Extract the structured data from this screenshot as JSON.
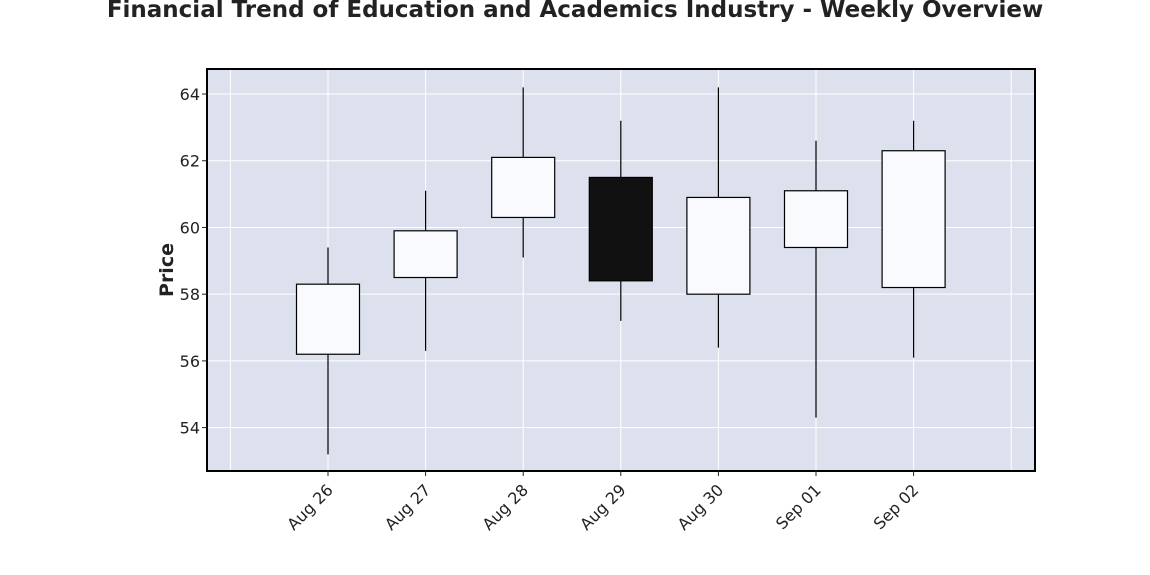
{
  "chart_data": {
    "type": "candlestick",
    "title": "Financial Trend of Education and Academics Industry - Weekly Overview",
    "xlabel": "",
    "ylabel": "Price",
    "categories": [
      "Aug 26",
      "Aug 27",
      "Aug 28",
      "Aug 29",
      "Aug 30",
      "Sep 01",
      "Sep 02"
    ],
    "series": [
      {
        "open": [
          56.2,
          58.5,
          60.3,
          61.5,
          58.0,
          59.4,
          58.2
        ],
        "high": [
          59.4,
          61.1,
          64.2,
          63.2,
          64.2,
          62.6,
          63.2
        ],
        "low": [
          53.2,
          56.3,
          59.1,
          57.2,
          56.4,
          54.3,
          56.1
        ],
        "close": [
          58.3,
          59.9,
          62.1,
          58.4,
          60.9,
          61.1,
          62.3
        ]
      }
    ],
    "ylim": [
      52.7,
      64.75
    ],
    "yticks": [
      54,
      56,
      58,
      60,
      62,
      64
    ],
    "grid": true,
    "colors": {
      "plot_background": "#dde1ee",
      "up_fill": "#f8fafe",
      "down_fill": "#111111",
      "edge": "#000000",
      "grid": "#ffffff"
    }
  }
}
